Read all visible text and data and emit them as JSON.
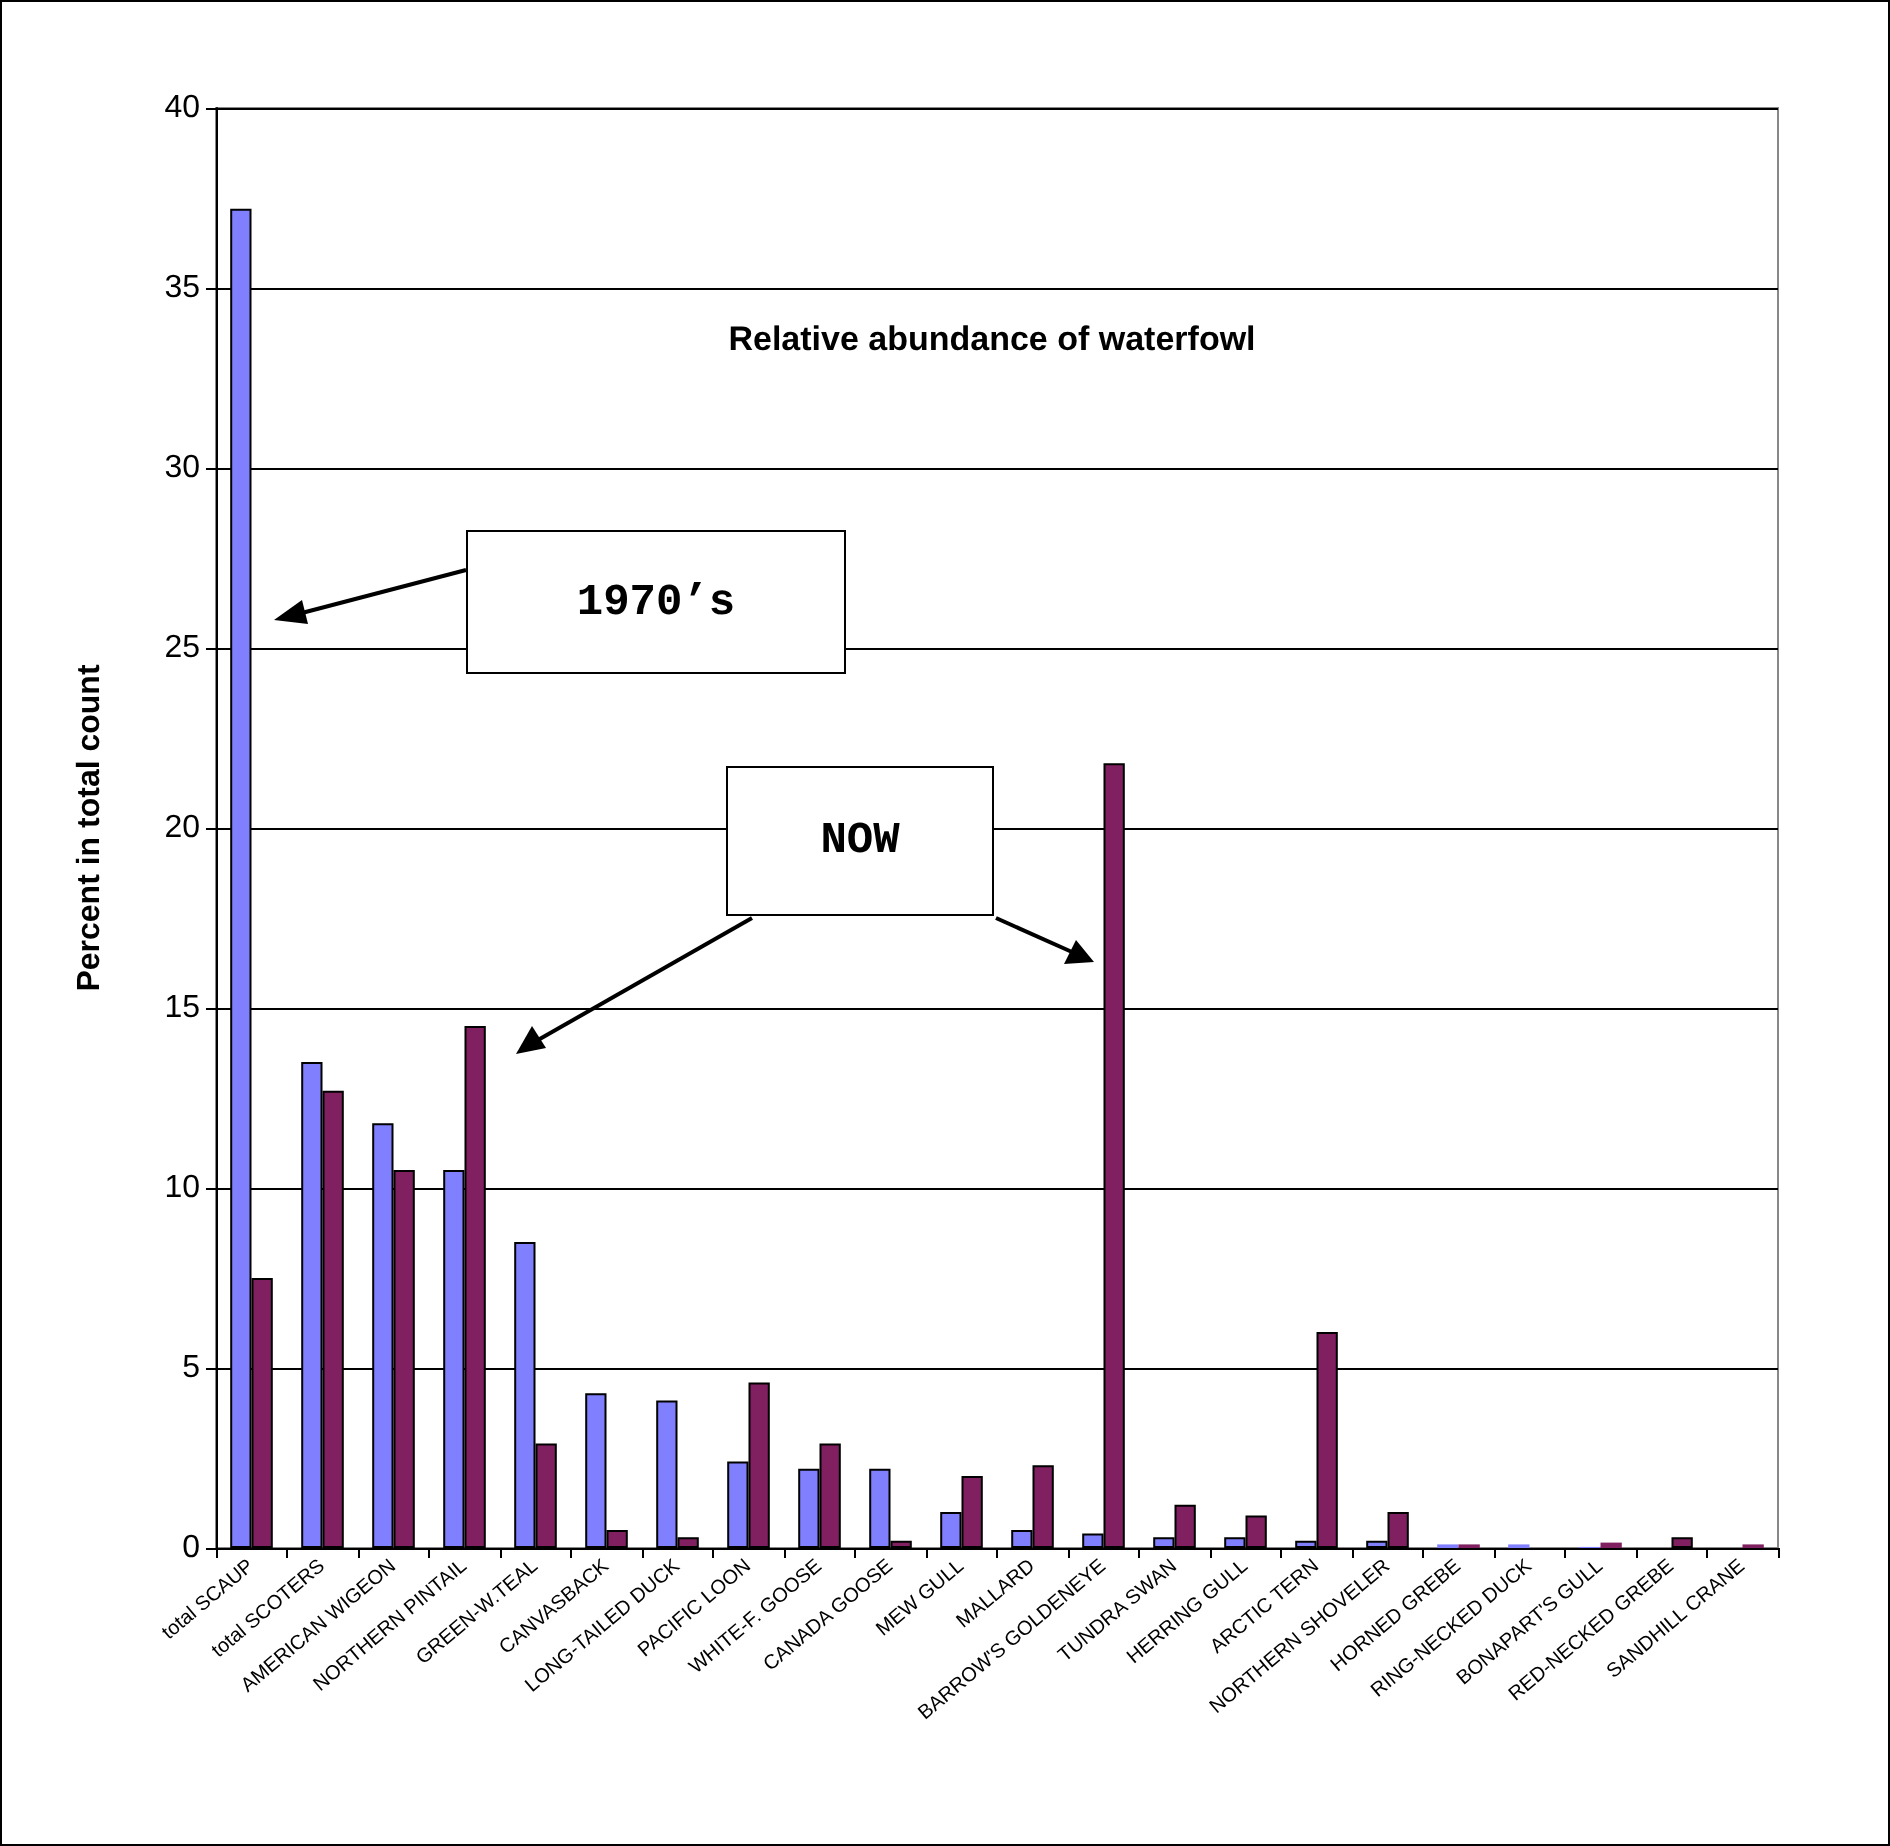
{
  "chart_data": {
    "type": "bar",
    "title": "Relative abundance of waterfowl",
    "ylabel": "Percent in total count",
    "categories": [
      "total SCAUP",
      "total SCOTERS",
      "AMERICAN WIGEON",
      "NORTHERN PINTAIL",
      "GREEN-W.TEAL",
      "CANVASBACK",
      "LONG-TAILED DUCK",
      "PACIFIC LOON",
      "WHITE-F. GOOSE",
      "CANADA GOOSE",
      "MEW GULL",
      "MALLARD",
      "BARROW'S GOLDENEYE",
      "TUNDRA SWAN",
      "HERRING GULL",
      "ARCTIC TERN",
      "NORTHERN SHOVELER",
      "HORNED GREBE",
      "RING-NECKED DUCK",
      "BONAPART'S GULL",
      "RED-NECKED GREBE",
      "SANDHILL CRANE"
    ],
    "series": [
      {
        "color": "#8080ff",
        "values": [
          37.2,
          13.5,
          11.8,
          10.5,
          8.5,
          4.3,
          4.1,
          2.4,
          2.2,
          2.2,
          1.0,
          0.5,
          0.4,
          0.3,
          0.3,
          0.2,
          0.2,
          0.1,
          0.1,
          0.03,
          0,
          0
        ]
      },
      {
        "color": "#802060",
        "values": [
          7.5,
          12.7,
          10.5,
          14.5,
          2.9,
          0.5,
          0.3,
          4.6,
          2.9,
          0.2,
          2.0,
          2.3,
          21.8,
          1.2,
          0.9,
          6.0,
          1.0,
          0.1,
          0,
          0.15,
          0.3,
          0.1
        ]
      }
    ],
    "ylim": [
      0,
      40
    ],
    "yticks": [
      0,
      5,
      10,
      15,
      20,
      25,
      30,
      35,
      40
    ],
    "grid": "y",
    "annotations": [
      "1970’s",
      "NOW"
    ]
  }
}
